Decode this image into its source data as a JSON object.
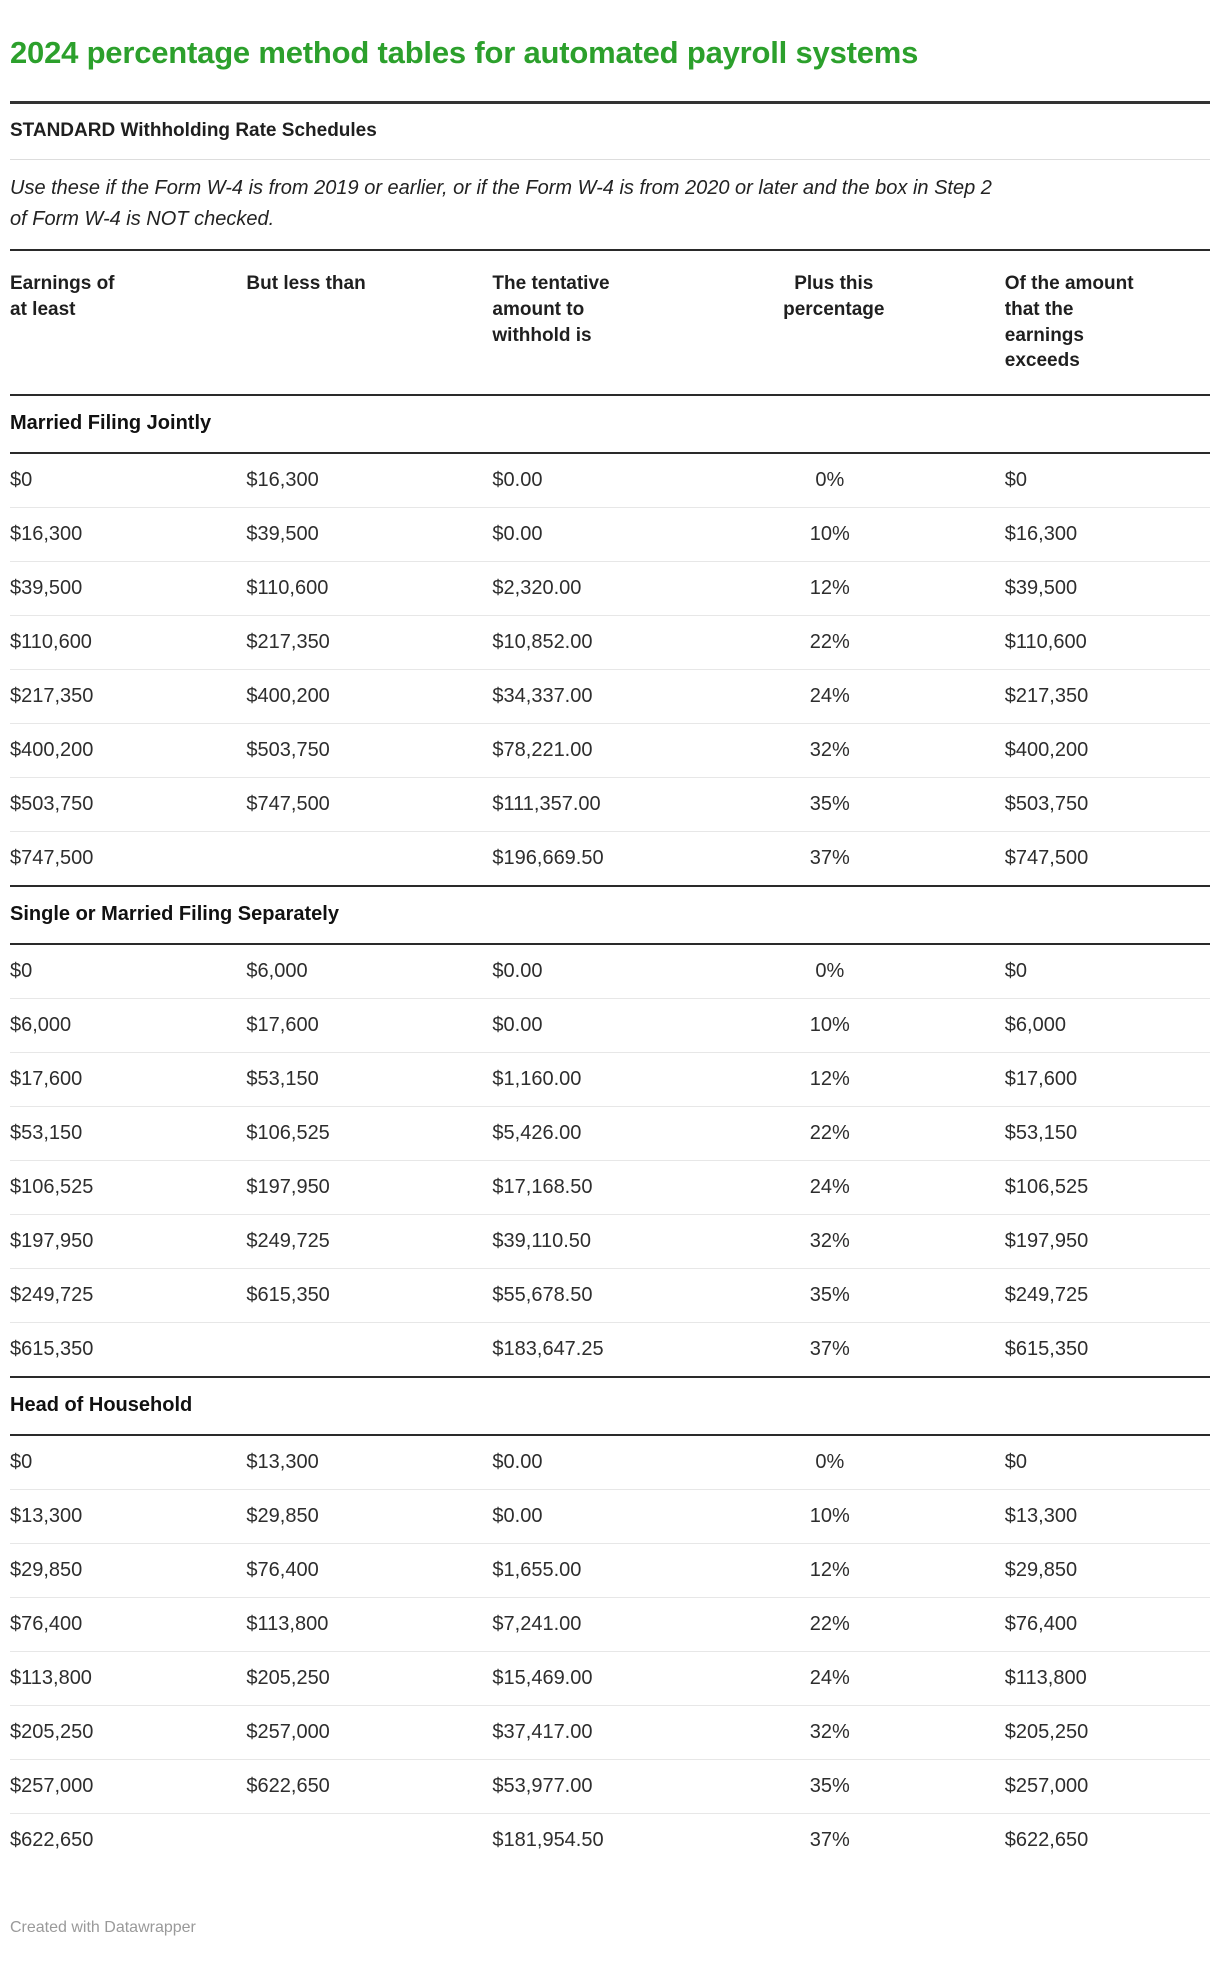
{
  "chart_data": {
    "type": "table",
    "title": "2024 percentage method tables for automated payroll systems",
    "subtitle": "STANDARD Withholding Rate Schedules",
    "description": "Use these if the Form W-4 is from 2019 or earlier, or if the Form W-4 is from 2020 or later and the box in Step 2 of Form W-4 is NOT checked.",
    "columns": [
      "Earnings of at least",
      "But less than",
      "The tentative amount to withhold is",
      "Plus this percentage",
      "Of the amount that the earnings exceeds"
    ],
    "column_alignments": [
      "left",
      "left",
      "left",
      "center",
      "left"
    ],
    "sections": [
      {
        "name": "Married Filing Jointly",
        "rows": [
          [
            "$0",
            "$16,300",
            "$0.00",
            "0%",
            "$0"
          ],
          [
            "$16,300",
            "$39,500",
            "$0.00",
            "10%",
            "$16,300"
          ],
          [
            "$39,500",
            "$110,600",
            "$2,320.00",
            "12%",
            "$39,500"
          ],
          [
            "$110,600",
            "$217,350",
            "$10,852.00",
            "22%",
            "$110,600"
          ],
          [
            "$217,350",
            "$400,200",
            "$34,337.00",
            "24%",
            "$217,350"
          ],
          [
            "$400,200",
            "$503,750",
            "$78,221.00",
            "32%",
            "$400,200"
          ],
          [
            "$503,750",
            "$747,500",
            "$111,357.00",
            "35%",
            "$503,750"
          ],
          [
            "$747,500",
            "",
            "$196,669.50",
            "37%",
            "$747,500"
          ]
        ]
      },
      {
        "name": "Single or Married Filing Separately",
        "rows": [
          [
            "$0",
            "$6,000",
            "$0.00",
            "0%",
            "$0"
          ],
          [
            "$6,000",
            "$17,600",
            "$0.00",
            "10%",
            "$6,000"
          ],
          [
            "$17,600",
            "$53,150",
            "$1,160.00",
            "12%",
            "$17,600"
          ],
          [
            "$53,150",
            "$106,525",
            "$5,426.00",
            "22%",
            "$53,150"
          ],
          [
            "$106,525",
            "$197,950",
            "$17,168.50",
            "24%",
            "$106,525"
          ],
          [
            "$197,950",
            "$249,725",
            "$39,110.50",
            "32%",
            "$197,950"
          ],
          [
            "$249,725",
            "$615,350",
            "$55,678.50",
            "35%",
            "$249,725"
          ],
          [
            "$615,350",
            "",
            "$183,647.25",
            "37%",
            "$615,350"
          ]
        ]
      },
      {
        "name": "Head of Household",
        "rows": [
          [
            "$0",
            "$13,300",
            "$0.00",
            "0%",
            "$0"
          ],
          [
            "$13,300",
            "$29,850",
            "$0.00",
            "10%",
            "$13,300"
          ],
          [
            "$29,850",
            "$76,400",
            "$1,655.00",
            "12%",
            "$29,850"
          ],
          [
            "$76,400",
            "$113,800",
            "$7,241.00",
            "22%",
            "$76,400"
          ],
          [
            "$113,800",
            "$205,250",
            "$15,469.00",
            "24%",
            "$113,800"
          ],
          [
            "$205,250",
            "$257,000",
            "$37,417.00",
            "32%",
            "$205,250"
          ],
          [
            "$257,000",
            "$622,650",
            "$53,977.00",
            "35%",
            "$257,000"
          ],
          [
            "$622,650",
            "",
            "$181,954.50",
            "37%",
            "$622,650"
          ]
        ]
      }
    ],
    "footer": "Created with Datawrapper",
    "colors": {
      "title_green": "#2ca02c",
      "rule_dark": "#333333",
      "table_line_dark": "#2a2a2a",
      "rule_light": "#dddddd",
      "row_divider": "#e7e7e7",
      "footer_gray": "#9a9a9a",
      "text": "#2d2d2d"
    }
  }
}
